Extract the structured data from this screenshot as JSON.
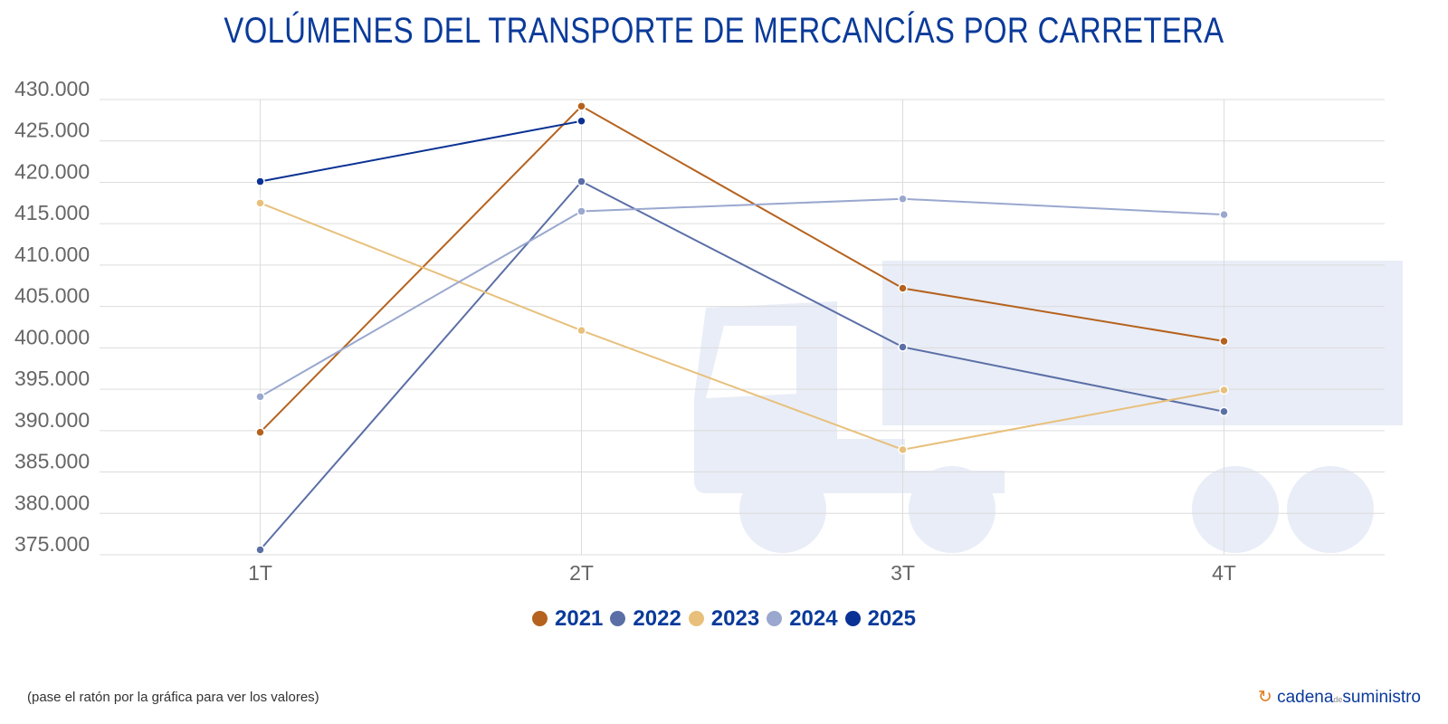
{
  "chart_data": {
    "type": "line",
    "title": "VOLÚMENES DEL TRANSPORTE DE MERCANCÍAS POR CARRETERA",
    "categories": [
      "1T",
      "2T",
      "3T",
      "4T"
    ],
    "ylim": [
      375000,
      430000
    ],
    "yticks": [
      "375.000",
      "380.000",
      "385.000",
      "390.000",
      "395.000",
      "400.000",
      "405.000",
      "410.000",
      "415.000",
      "420.000",
      "425.000",
      "430.000"
    ],
    "grid": true,
    "legend_position": "bottom",
    "series": [
      {
        "name": "2021",
        "color": "#b5621e",
        "values": [
          389800,
          429200,
          407200,
          400800
        ]
      },
      {
        "name": "2022",
        "color": "#5b6fa6",
        "values": [
          375600,
          420100,
          400100,
          392300
        ]
      },
      {
        "name": "2023",
        "color": "#e8c07c",
        "values": [
          417500,
          402100,
          387700,
          394900
        ]
      },
      {
        "name": "2024",
        "color": "#9aa8cf",
        "values": [
          394100,
          416500,
          418000,
          416100
        ]
      },
      {
        "name": "2025",
        "color": "#0a3194",
        "values": [
          420100,
          427400,
          null,
          null
        ]
      }
    ]
  },
  "footer": {
    "note": "(pase el ratón por la gráfica para ver los valores)",
    "logo_main": "cadena",
    "logo_small": "de",
    "logo_end": "suministro"
  }
}
